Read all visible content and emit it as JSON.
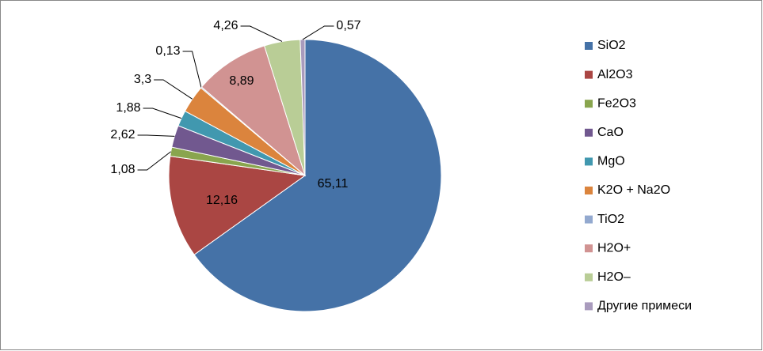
{
  "chart_data": {
    "type": "pie",
    "categories": [
      "SiO2",
      "Al2O3",
      "Fe2O3",
      "CaO",
      "MgO",
      "K2O + Na2O",
      "TiO2",
      "H2O+",
      "H2O–",
      "Другие примеси"
    ],
    "values": [
      65.11,
      12.16,
      1.08,
      2.62,
      1.88,
      3.3,
      0.13,
      8.89,
      4.26,
      0.57
    ],
    "value_labels": [
      "65,11",
      "12,16",
      "1,08",
      "2,62",
      "1,88",
      "3,3",
      "0,13",
      "8,89",
      "4,26",
      "0,57"
    ],
    "colors": [
      "#4572a7",
      "#aa4643",
      "#89a54e",
      "#71588f",
      "#4198af",
      "#db843d",
      "#93a9cf",
      "#d19392",
      "#b9cd96",
      "#a99bbd"
    ],
    "legend": "right"
  }
}
